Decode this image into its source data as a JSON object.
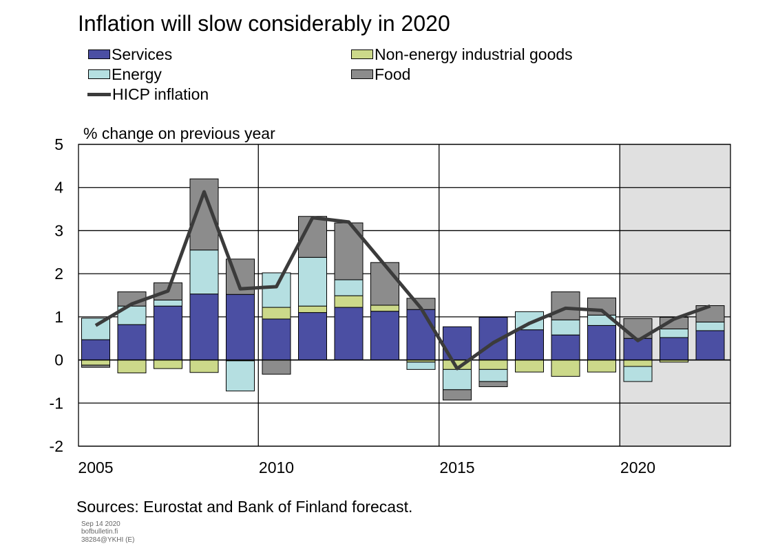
{
  "chart_data": {
    "type": "bar",
    "title": "Inflation will slow considerably in 2020",
    "ylabel": "% change on previous year",
    "source": "Sources: Eurostat and Bank of Finland forecast.",
    "ylim": [
      -2,
      5
    ],
    "yticks": [
      "5",
      "4",
      "3",
      "2",
      "1",
      "0",
      "-1",
      "-2"
    ],
    "xtick_labels": [
      "2005",
      "2010",
      "2015",
      "2020"
    ],
    "x": [
      2005,
      2006,
      2007,
      2008,
      2009,
      2010,
      2011,
      2012,
      2013,
      2014,
      2015,
      2016,
      2017,
      2018,
      2019,
      2020,
      2021,
      2022
    ],
    "forecast_from": 2020,
    "series": [
      {
        "name": "Services",
        "color": "#4b4fa3",
        "values": [
          0.47,
          0.82,
          1.25,
          1.53,
          1.52,
          0.95,
          1.1,
          1.22,
          1.13,
          1.17,
          0.77,
          0.99,
          0.7,
          0.58,
          0.8,
          0.5,
          0.52,
          0.68
        ]
      },
      {
        "name": "Non-energy industrial goods",
        "color": "#ccd98a",
        "values": [
          -0.12,
          -0.3,
          -0.2,
          -0.29,
          -0.02,
          0.27,
          0.15,
          0.27,
          0.14,
          -0.05,
          -0.22,
          -0.22,
          -0.28,
          -0.38,
          -0.28,
          -0.15,
          -0.05,
          0.0
        ]
      },
      {
        "name": "Energy",
        "color": "#b5dfe1",
        "values": [
          0.5,
          0.43,
          0.14,
          1.02,
          -0.7,
          0.8,
          1.13,
          0.37,
          0.0,
          -0.17,
          -0.47,
          -0.28,
          0.42,
          0.35,
          0.24,
          -0.35,
          0.2,
          0.2
        ]
      },
      {
        "name": "Food",
        "color": "#8c8c8c",
        "values": [
          -0.05,
          0.33,
          0.4,
          1.65,
          0.82,
          -0.33,
          0.95,
          1.32,
          0.99,
          0.26,
          -0.24,
          -0.12,
          0.0,
          0.65,
          0.4,
          0.46,
          0.27,
          0.38
        ]
      },
      {
        "name": "HICP inflation",
        "type": "line",
        "color": "#3b3b3b",
        "values": [
          0.8,
          1.3,
          1.6,
          3.9,
          1.65,
          1.7,
          3.3,
          3.2,
          2.2,
          1.2,
          -0.2,
          0.4,
          0.85,
          1.2,
          1.15,
          0.45,
          0.95,
          1.25
        ]
      }
    ]
  },
  "meta": [
    "Sep 14 2020",
    "bofbulletin.fi",
    "38284@YKHI  (E)"
  ]
}
